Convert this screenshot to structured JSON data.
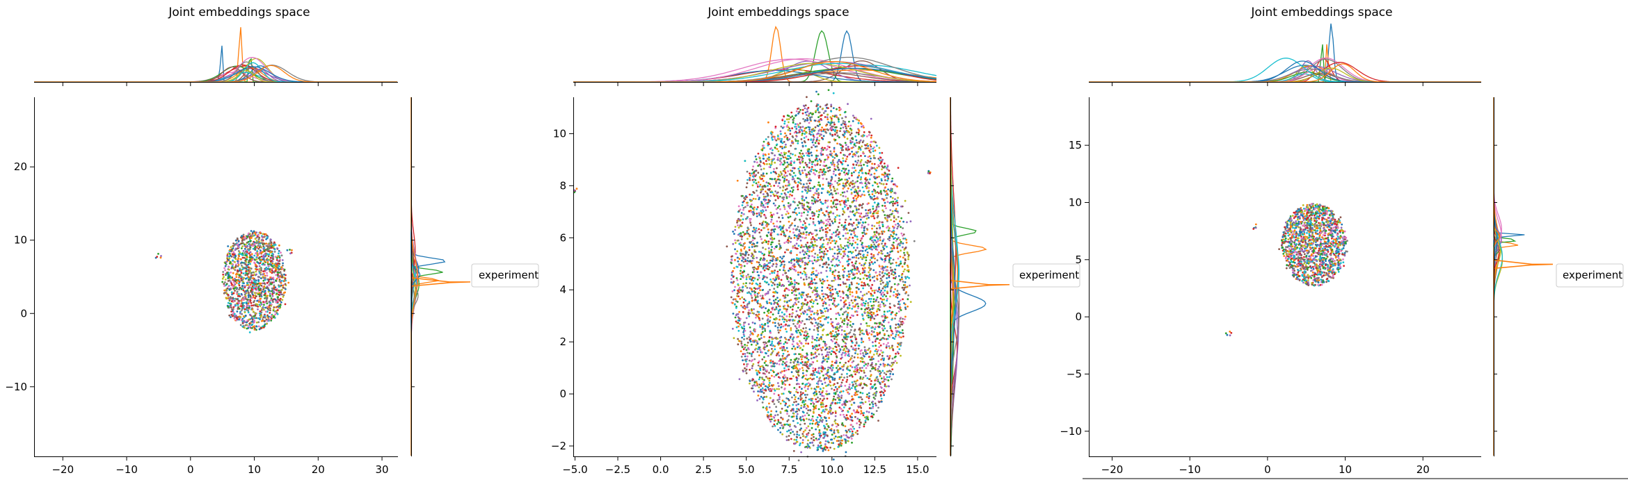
{
  "palette": [
    "#1f77b4",
    "#ff7f0e",
    "#2ca02c",
    "#d62728",
    "#9467bd",
    "#8c564b",
    "#e377c2",
    "#7f7f7f",
    "#bcbd22",
    "#17becf"
  ],
  "chart_data": [
    {
      "type": "scatter",
      "title": "Joint embeddings space",
      "legend": {
        "entries": [
          "experiment"
        ],
        "placement": "center-right"
      },
      "xlim": [
        -24.5,
        32.5
      ],
      "ylim": [
        -19.5,
        29.5
      ],
      "xticks": [
        -20,
        -10,
        0,
        10,
        20,
        30
      ],
      "yticks": [
        -10,
        0,
        10,
        20
      ],
      "xtick_labels": [
        "−20",
        "−10",
        "0",
        "10",
        "20",
        "30"
      ],
      "ytick_labels": [
        "−10",
        "0",
        "10",
        "20"
      ],
      "cluster": {
        "cx": 10.0,
        "cy": 4.5,
        "rx": 5.0,
        "ry": 6.8
      },
      "outliers": [
        {
          "x": -5.0,
          "y": 7.9
        },
        {
          "x": 15.5,
          "y": 8.5
        }
      ],
      "legend_spike_y": 4.3,
      "grid": false
    },
    {
      "type": "scatter",
      "title": "Joint embeddings space",
      "legend": {
        "entries": [
          "experiment"
        ],
        "placement": "center-right"
      },
      "xlim": [
        -5.1,
        16.1
      ],
      "ylim": [
        -2.4,
        11.4
      ],
      "xticks": [
        -5.0,
        -2.5,
        0.0,
        2.5,
        5.0,
        7.5,
        10.0,
        12.5,
        15.0
      ],
      "yticks": [
        -2,
        0,
        2,
        4,
        6,
        8,
        10
      ],
      "xtick_labels": [
        "−5.0",
        "−2.5",
        "0.0",
        "2.5",
        "5.0",
        "7.5",
        "10.0",
        "12.5",
        "15.0"
      ],
      "ytick_labels": [
        "−2",
        "0",
        "2",
        "4",
        "6",
        "8",
        "10"
      ],
      "cluster": {
        "cx": 9.3,
        "cy": 4.5,
        "rx": 5.2,
        "ry": 6.7
      },
      "outliers": [
        {
          "x": -4.9,
          "y": 7.8
        },
        {
          "x": 15.6,
          "y": 8.5
        }
      ],
      "legend_spike_y": 4.2,
      "grid": false
    },
    {
      "type": "scatter",
      "title": "Joint embeddings space",
      "legend": {
        "entries": [
          "experiment"
        ],
        "placement": "center-right"
      },
      "xlim": [
        -23.0,
        27.5
      ],
      "ylim": [
        -12.2,
        19.2
      ],
      "xticks": [
        -20,
        -10,
        0,
        10,
        20
      ],
      "yticks": [
        -10,
        -5,
        0,
        5,
        10,
        15
      ],
      "xtick_labels": [
        "−20",
        "−10",
        "0",
        "10",
        "20"
      ],
      "ytick_labels": [
        "−10",
        "−5",
        "0",
        "5",
        "10",
        "15"
      ],
      "cluster": {
        "cx": 6.0,
        "cy": 6.3,
        "rx": 4.2,
        "ry": 3.6
      },
      "outliers": [
        {
          "x": -1.8,
          "y": 7.9
        },
        {
          "x": -5.0,
          "y": -1.4
        }
      ],
      "legend_spike_y": 4.6,
      "grid": false
    }
  ]
}
